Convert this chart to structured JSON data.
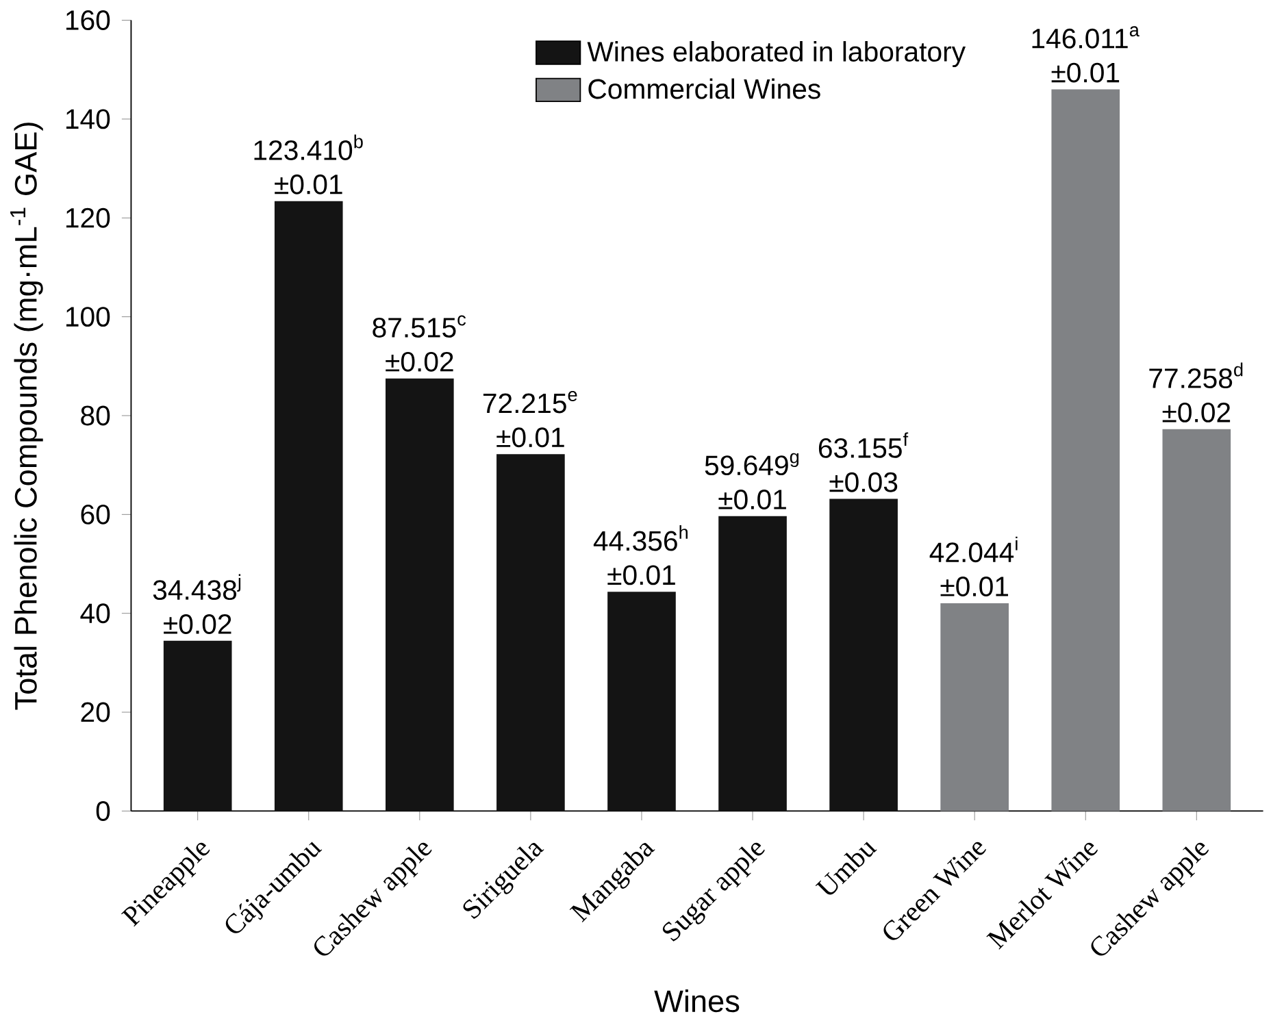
{
  "chart_data": {
    "type": "bar",
    "xlabel": "Wines",
    "ylabel": "Total Phenolic Compounds (mg·mL$^{-1}$ GAE)",
    "categories": [
      "Pineapple",
      "Cája-umbu",
      "Cashew apple",
      "Siriguela",
      "Mangaba",
      "Sugar apple",
      "Umbu",
      "Green Wine",
      "Merlot Wine",
      "Cashew apple"
    ],
    "series": [
      {
        "name": "Wines elaborated in laboratory",
        "color": "#141414",
        "values": [
          34.438,
          123.41,
          87.515,
          72.215,
          44.356,
          59.649,
          63.155,
          null,
          null,
          null
        ]
      },
      {
        "name": "Commercial Wines",
        "color": "#808285",
        "values": [
          null,
          null,
          null,
          null,
          null,
          null,
          null,
          42.044,
          146.011,
          77.258
        ]
      }
    ],
    "value_labels": [
      "34.438$^{j}$ ±0.02",
      "123.410$^{b}$ ±0.01",
      "87.515$^{c}$ ±0.02",
      "72.215$^{e}$ ±0.01",
      "44.356$^{h}$ ±0.01",
      "59.649$^{g}$ ±0.01",
      "63.155$^{f}$ ±0.03",
      "42.044$^{i}$ ±0.01",
      "146.011$^{a}$ ±0.01",
      "77.258$^{d}$ ±0.02"
    ],
    "ylim": [
      0,
      160
    ],
    "yticks": [
      0,
      20,
      40,
      60,
      80,
      100,
      120,
      140,
      160
    ],
    "grid": false,
    "legend": "top"
  }
}
